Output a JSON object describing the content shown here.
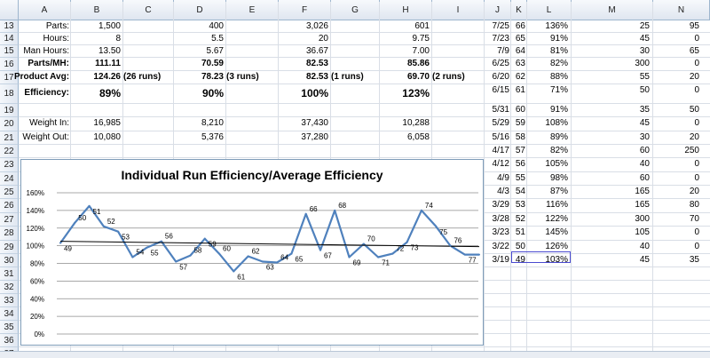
{
  "sheet": {
    "column_headers": [
      "A",
      "B",
      "C",
      "D",
      "E",
      "F",
      "G",
      "H",
      "I",
      "J",
      "K",
      "L",
      "M",
      "N"
    ],
    "row_numbers": [
      "13",
      "14",
      "15",
      "16",
      "17",
      "18",
      "19",
      "20",
      "21",
      "22",
      "23",
      "24",
      "25",
      "26",
      "27",
      "28",
      "29",
      "30",
      "31",
      "32",
      "33",
      "34",
      "35",
      "36",
      "37"
    ],
    "labels": {
      "parts": "Parts:",
      "hours": "Hours:",
      "man_hours": "Man Hours:",
      "parts_mh": "Parts/MH:",
      "product_avg": "Product Avg:",
      "efficiency": "Efficiency:",
      "weight_in": "Weight In:",
      "weight_out": "Weight Out:"
    },
    "col_b": {
      "parts": "1,500",
      "hours": "8",
      "man_hours": "13.50",
      "parts_mh": "111.11",
      "product_avg": "124.26",
      "runs": "(26 runs)",
      "efficiency": "89%",
      "weight_in": "16,985",
      "weight_out": "10,080"
    },
    "col_d": {
      "parts": "400",
      "hours": "5.5",
      "man_hours": "5.67",
      "parts_mh": "70.59",
      "product_avg": "78.23",
      "runs": "(3 runs)",
      "efficiency": "90%",
      "weight_in": "8,210",
      "weight_out": "5,376"
    },
    "col_f": {
      "parts": "3,026",
      "hours": "20",
      "man_hours": "36.67",
      "parts_mh": "82.53",
      "product_avg": "82.53",
      "runs": "(1 runs)",
      "efficiency": "100%",
      "weight_in": "37,430",
      "weight_out": "37,280"
    },
    "col_h": {
      "parts": "601",
      "hours": "9.75",
      "man_hours": "7.00",
      "parts_mh": "85.86",
      "product_avg": "69.70",
      "runs": "(2 runs)",
      "efficiency": "123%",
      "weight_in": "10,288",
      "weight_out": "6,058"
    },
    "right_table": [
      {
        "j": "7/25",
        "k": "66",
        "l": "136%",
        "m": "25",
        "n": "95"
      },
      {
        "j": "7/23",
        "k": "65",
        "l": "91%",
        "m": "45",
        "n": "0"
      },
      {
        "j": "7/9",
        "k": "64",
        "l": "81%",
        "m": "30",
        "n": "65"
      },
      {
        "j": "6/25",
        "k": "63",
        "l": "82%",
        "m": "300",
        "n": "0"
      },
      {
        "j": "6/20",
        "k": "62",
        "l": "88%",
        "m": "55",
        "n": "20"
      },
      {
        "j": "6/15",
        "k": "61",
        "l": "71%",
        "m": "50",
        "n": "0"
      },
      {
        "j": "5/31",
        "k": "60",
        "l": "91%",
        "m": "35",
        "n": "50"
      },
      {
        "j": "5/29",
        "k": "59",
        "l": "108%",
        "m": "45",
        "n": "0"
      },
      {
        "j": "5/16",
        "k": "58",
        "l": "89%",
        "m": "30",
        "n": "20"
      },
      {
        "j": "4/17",
        "k": "57",
        "l": "82%",
        "m": "60",
        "n": "250"
      },
      {
        "j": "4/12",
        "k": "56",
        "l": "105%",
        "m": "40",
        "n": "0"
      },
      {
        "j": "4/9",
        "k": "55",
        "l": "98%",
        "m": "60",
        "n": "0"
      },
      {
        "j": "4/3",
        "k": "54",
        "l": "87%",
        "m": "165",
        "n": "20"
      },
      {
        "j": "3/29",
        "k": "53",
        "l": "116%",
        "m": "165",
        "n": "80"
      },
      {
        "j": "3/28",
        "k": "52",
        "l": "122%",
        "m": "300",
        "n": "70"
      },
      {
        "j": "3/23",
        "k": "51",
        "l": "145%",
        "m": "105",
        "n": "0"
      },
      {
        "j": "3/22",
        "k": "50",
        "l": "126%",
        "m": "40",
        "n": "0"
      },
      {
        "j": "3/19",
        "k": "49",
        "l": "103%",
        "m": "45",
        "n": "35"
      }
    ]
  },
  "chart_data": {
    "type": "line",
    "title": "Individual Run Efficiency/Average Efficiency",
    "ylim": [
      0,
      160
    ],
    "y_ticks": [
      "0%",
      "20%",
      "40%",
      "60%",
      "80%",
      "100%",
      "120%",
      "140%",
      "160%"
    ],
    "grid": true,
    "legend": "none",
    "series": [
      {
        "values": [
          103,
          126,
          145,
          122,
          116,
          87,
          98,
          105,
          82,
          89,
          108,
          91,
          71,
          88,
          82,
          81,
          91,
          136,
          95,
          140,
          87,
          102,
          87,
          91,
          104,
          140,
          122,
          100,
          90,
          90
        ]
      }
    ],
    "point_labels": [
      "49",
      "50",
      "51",
      "52",
      "53",
      "54",
      "55",
      "56",
      "57",
      "58",
      "59",
      "60",
      "61",
      "62",
      "63",
      "64",
      "65",
      "66",
      "67",
      "68",
      "69",
      "70",
      "71",
      "72",
      "73",
      "74",
      "75",
      "76",
      "77",
      "78"
    ],
    "trendline": {
      "start": 105,
      "end": 99
    },
    "series_color": "#4f81bd",
    "trend_color": "#000000"
  }
}
